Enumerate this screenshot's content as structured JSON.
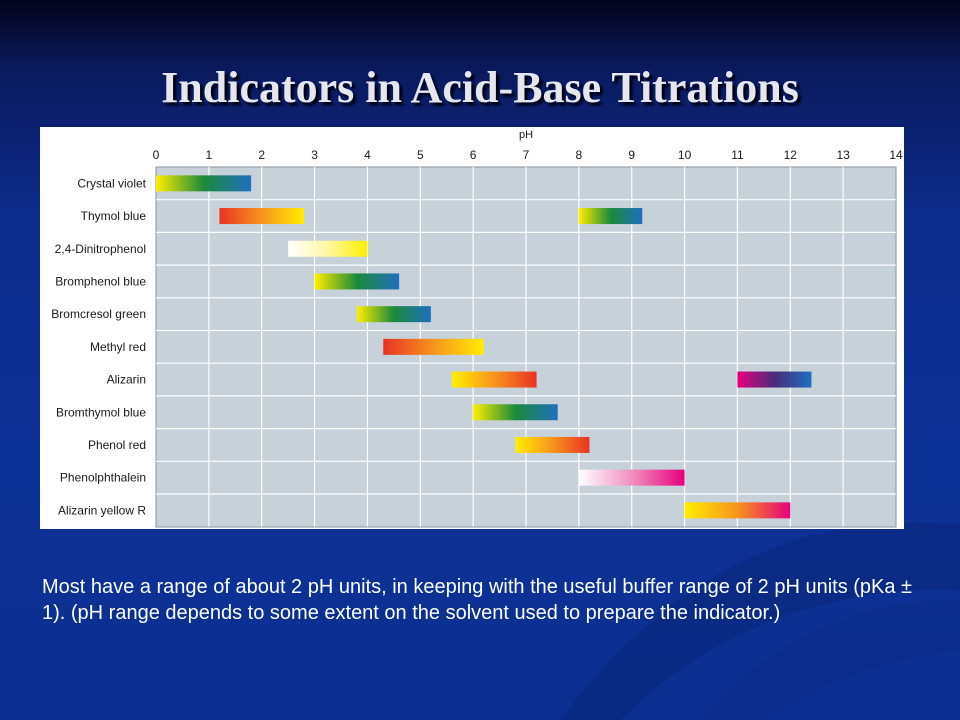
{
  "slide": {
    "title": "Indicators in Acid-Base Titrations",
    "caption": "Most have a range of about 2 pH units, in keeping with the useful buffer range of 2 pH units (pKa ± 1). (pH range depends to some extent on the solvent used to prepare the indicator.)"
  },
  "chart_data": {
    "type": "bar",
    "orientation": "horizontal-range",
    "title": "",
    "xlabel": "pH",
    "ylabel": "",
    "xlim": [
      0,
      14
    ],
    "xticks": [
      0,
      1,
      2,
      3,
      4,
      5,
      6,
      7,
      8,
      9,
      10,
      11,
      12,
      13,
      14
    ],
    "grid": true,
    "legend": "none",
    "categories": [
      "Crystal violet",
      "Thymol blue",
      "2,4-Dinitrophenol",
      "Bromphenol blue",
      "Bromcresol green",
      "Methyl red",
      "Alizarin",
      "Bromthymol blue",
      "Phenol red",
      "Phenolphthalein",
      "Alizarin yellow R"
    ],
    "ranges": [
      {
        "indicator": "Crystal violet",
        "start": 0.0,
        "end": 1.8,
        "colors": [
          "#ffee00",
          "#1b8a3a",
          "#1f6fc0"
        ]
      },
      {
        "indicator": "Thymol blue",
        "start": 1.2,
        "end": 2.8,
        "colors": [
          "#e83323",
          "#f7941d",
          "#ffee00"
        ]
      },
      {
        "indicator": "Thymol blue",
        "start": 8.0,
        "end": 9.2,
        "colors": [
          "#ffee00",
          "#1b8a3a",
          "#1f6fc0"
        ]
      },
      {
        "indicator": "2,4-Dinitrophenol",
        "start": 2.5,
        "end": 4.0,
        "colors": [
          "#ffffff",
          "#fff7a0",
          "#ffee00"
        ]
      },
      {
        "indicator": "Bromphenol blue",
        "start": 3.0,
        "end": 4.6,
        "colors": [
          "#ffee00",
          "#1b8a3a",
          "#1f6fc0"
        ]
      },
      {
        "indicator": "Bromcresol green",
        "start": 3.8,
        "end": 5.2,
        "colors": [
          "#ffee00",
          "#1b8a3a",
          "#1f6fc0"
        ]
      },
      {
        "indicator": "Methyl red",
        "start": 4.3,
        "end": 6.2,
        "colors": [
          "#e83323",
          "#f7941d",
          "#ffee00"
        ]
      },
      {
        "indicator": "Alizarin",
        "start": 5.6,
        "end": 7.2,
        "colors": [
          "#ffee00",
          "#f7941d",
          "#e83323"
        ]
      },
      {
        "indicator": "Alizarin",
        "start": 11.0,
        "end": 12.4,
        "colors": [
          "#e6007e",
          "#4a2a7a",
          "#1f6fc0"
        ]
      },
      {
        "indicator": "Bromthymol blue",
        "start": 6.0,
        "end": 7.6,
        "colors": [
          "#ffee00",
          "#1b8a3a",
          "#1f6fc0"
        ]
      },
      {
        "indicator": "Phenol red",
        "start": 6.8,
        "end": 8.2,
        "colors": [
          "#ffee00",
          "#f7941d",
          "#e83323"
        ]
      },
      {
        "indicator": "Phenolphthalein",
        "start": 8.0,
        "end": 10.0,
        "colors": [
          "#ffffff",
          "#f090c0",
          "#e6007e"
        ]
      },
      {
        "indicator": "Alizarin yellow R",
        "start": 10.0,
        "end": 12.0,
        "colors": [
          "#ffee00",
          "#f7941d",
          "#e6007e"
        ]
      }
    ]
  }
}
